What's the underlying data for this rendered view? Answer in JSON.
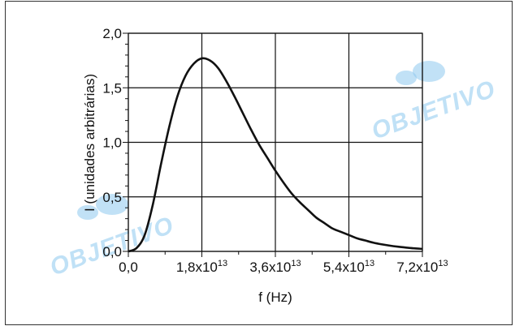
{
  "watermark": {
    "text": "OBJETIVO"
  },
  "chart_data": {
    "type": "line",
    "xlabel": "f (Hz)",
    "ylabel": "I (unidades arbitrárias)",
    "xlim": [
      0,
      72000000000000.0
    ],
    "ylim": [
      0,
      2.0
    ],
    "grid": true,
    "xticks": [
      {
        "value": 0,
        "mantissa": "0,0",
        "exponent": ""
      },
      {
        "value": 18000000000000.0,
        "mantissa": "1,8x10",
        "exponent": "13"
      },
      {
        "value": 36000000000000.0,
        "mantissa": "3,6x10",
        "exponent": "13"
      },
      {
        "value": 54000000000000.0,
        "mantissa": "5,4x10",
        "exponent": "13"
      },
      {
        "value": 72000000000000.0,
        "mantissa": "7,2x10",
        "exponent": "13"
      }
    ],
    "yticks": [
      {
        "value": 0.0,
        "label": "0,0"
      },
      {
        "value": 0.5,
        "label": "0,5"
      },
      {
        "value": 1.0,
        "label": "1,0"
      },
      {
        "value": 1.5,
        "label": "1,5"
      },
      {
        "value": 2.0,
        "label": "2,0"
      }
    ],
    "series": [
      {
        "x": [
          0,
          2000000000000.0,
          4000000000000.0,
          6000000000000.0,
          8000000000000.0,
          10000000000000.0,
          12000000000000.0,
          14000000000000.0,
          16000000000000.0,
          18000000000000.0,
          20000000000000.0,
          22000000000000.0,
          24000000000000.0,
          26000000000000.0,
          28000000000000.0,
          30000000000000.0,
          32000000000000.0,
          34000000000000.0,
          36000000000000.0,
          38000000000000.0,
          40000000000000.0,
          42000000000000.0,
          44000000000000.0,
          46000000000000.0,
          48000000000000.0,
          50000000000000.0,
          52000000000000.0,
          54000000000000.0,
          56000000000000.0,
          58000000000000.0,
          60000000000000.0,
          62000000000000.0,
          64000000000000.0,
          66000000000000.0,
          68000000000000.0,
          70000000000000.0,
          72000000000000.0
        ],
        "y": [
          0,
          0.03,
          0.15,
          0.43,
          0.8,
          1.14,
          1.42,
          1.61,
          1.72,
          1.77,
          1.75,
          1.68,
          1.56,
          1.42,
          1.27,
          1.12,
          0.98,
          0.86,
          0.74,
          0.63,
          0.53,
          0.45,
          0.38,
          0.31,
          0.26,
          0.21,
          0.18,
          0.15,
          0.12,
          0.1,
          0.08,
          0.065,
          0.053,
          0.043,
          0.035,
          0.028,
          0.023
        ]
      }
    ]
  }
}
